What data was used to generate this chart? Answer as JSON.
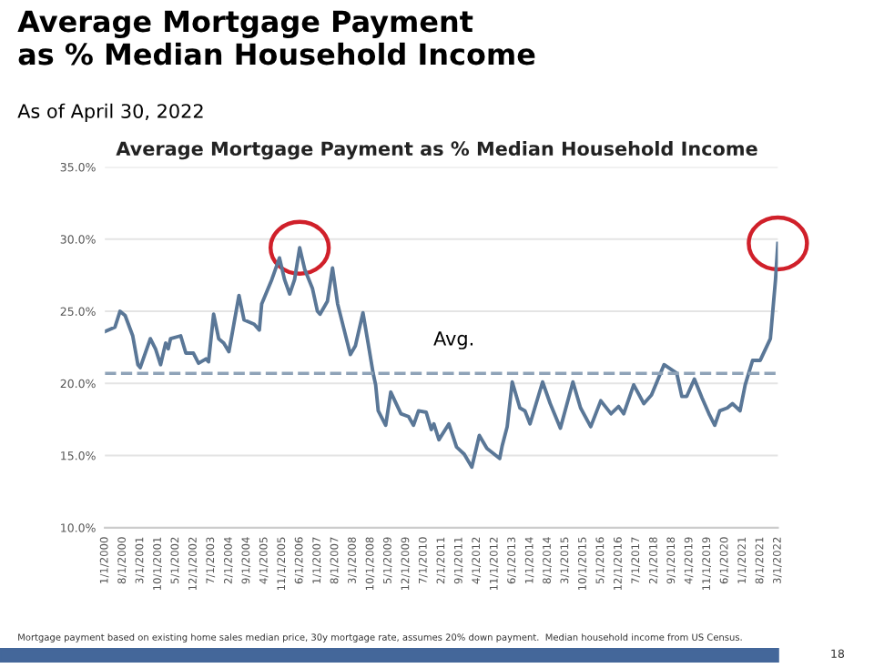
{
  "chart_data": {
    "type": "line",
    "title": "Average Mortgage Payment\nas % Median Household Income",
    "subtitle": "As of April 30, 2022",
    "annotations": [
      "Average Mortgage Payment as % Median Household Income",
      "Mortgage payment based on existing home sales median price, 30y mortgage rate, assumes 20% down payment.  Median household income from US Census.",
      "18"
    ],
    "x": [
      "2000-01",
      "2000-05",
      "2000-07",
      "2000-09",
      "2000-12",
      "2001-02",
      "2001-03",
      "2001-07",
      "2001-09",
      "2001-11",
      "2002-01",
      "2002-02",
      "2002-03",
      "2002-07",
      "2002-09",
      "2002-12",
      "2003-02",
      "2003-05",
      "2003-06",
      "2003-08",
      "2003-10",
      "2003-12",
      "2004-02",
      "2004-06",
      "2004-08",
      "2004-12",
      "2005-02",
      "2005-03",
      "2005-07",
      "2005-10",
      "2005-12",
      "2006-02",
      "2006-04",
      "2006-06",
      "2006-08",
      "2006-11",
      "2007-01",
      "2007-02",
      "2007-05",
      "2007-07",
      "2007-09",
      "2008-02",
      "2008-04",
      "2008-07",
      "2008-09",
      "2008-11",
      "2008-12",
      "2009-01",
      "2009-04",
      "2009-06",
      "2009-10",
      "2010-01",
      "2010-03",
      "2010-05",
      "2010-08",
      "2010-10",
      "2010-11",
      "2011-01",
      "2011-05",
      "2011-08",
      "2011-11",
      "2012-02",
      "2012-05",
      "2012-08",
      "2013-01",
      "2013-02",
      "2013-04",
      "2013-06",
      "2013-09",
      "2013-11",
      "2014-01",
      "2014-06",
      "2014-09",
      "2015-01",
      "2015-06",
      "2015-09",
      "2016-01",
      "2016-05",
      "2016-09",
      "2016-12",
      "2017-02",
      "2017-06",
      "2017-10",
      "2018-01",
      "2018-06",
      "2018-11",
      "2019-01",
      "2019-03",
      "2019-06",
      "2019-09",
      "2019-12",
      "2020-02",
      "2020-04",
      "2020-07",
      "2020-09",
      "2020-12",
      "2021-02",
      "2021-05",
      "2021-08",
      "2021-12",
      "2022-02",
      "2022-03"
    ],
    "series": [
      {
        "color": "#5a7797",
        "values": [
          23.6,
          23.9,
          25.0,
          24.7,
          23.3,
          21.3,
          21.1,
          23.1,
          22.4,
          21.3,
          22.8,
          22.4,
          23.1,
          23.3,
          22.1,
          22.1,
          21.4,
          21.7,
          21.5,
          24.8,
          23.1,
          22.8,
          22.2,
          26.1,
          24.4,
          24.1,
          23.7,
          25.5,
          27.2,
          28.7,
          27.2,
          26.2,
          27.2,
          29.4,
          27.9,
          26.6,
          25.0,
          24.8,
          25.7,
          28.0,
          25.5,
          22.0,
          22.6,
          24.9,
          22.8,
          20.7,
          19.9,
          18.1,
          17.1,
          19.4,
          17.9,
          17.7,
          17.1,
          18.1,
          18.0,
          16.8,
          17.2,
          16.1,
          17.2,
          15.6,
          15.1,
          14.2,
          16.4,
          15.5,
          14.8,
          15.7,
          17.0,
          20.1,
          18.3,
          18.1,
          17.2,
          20.1,
          18.6,
          16.9,
          20.1,
          18.3,
          17.0,
          18.8,
          17.9,
          18.4,
          17.9,
          19.9,
          18.6,
          19.2,
          21.3,
          20.7,
          19.1,
          19.1,
          20.3,
          19.0,
          17.8,
          17.1,
          18.1,
          18.3,
          18.6,
          18.1,
          19.9,
          21.6,
          21.6,
          23.1,
          27.2,
          29.7
        ]
      }
    ],
    "ref_lines": [
      {
        "axis": "y",
        "value": 20.7,
        "label": "Avg.",
        "color": "#8fa3b8",
        "line_style": "dashed"
      }
    ],
    "xlim": [
      "2000-01",
      "2022-03"
    ],
    "xticks": [
      {
        "value": "2000-01",
        "label": "1/1/2000"
      },
      {
        "value": "2000-08",
        "label": "8/1/2000"
      },
      {
        "value": "2001-03",
        "label": "3/1/2001"
      },
      {
        "value": "2001-10",
        "label": "10/1/2001"
      },
      {
        "value": "2002-05",
        "label": "5/1/2002"
      },
      {
        "value": "2002-12",
        "label": "12/1/2002"
      },
      {
        "value": "2003-07",
        "label": "7/1/2003"
      },
      {
        "value": "2004-02",
        "label": "2/1/2004"
      },
      {
        "value": "2004-09",
        "label": "9/1/2004"
      },
      {
        "value": "2005-04",
        "label": "4/1/2005"
      },
      {
        "value": "2005-11",
        "label": "11/1/2005"
      },
      {
        "value": "2006-06",
        "label": "6/1/2006"
      },
      {
        "value": "2007-01",
        "label": "1/1/2007"
      },
      {
        "value": "2007-08",
        "label": "8/1/2007"
      },
      {
        "value": "2008-03",
        "label": "3/1/2008"
      },
      {
        "value": "2008-10",
        "label": "10/1/2008"
      },
      {
        "value": "2009-05",
        "label": "5/1/2009"
      },
      {
        "value": "2009-12",
        "label": "12/1/2009"
      },
      {
        "value": "2010-07",
        "label": "7/1/2010"
      },
      {
        "value": "2011-02",
        "label": "2/1/2011"
      },
      {
        "value": "2011-09",
        "label": "9/1/2011"
      },
      {
        "value": "2012-04",
        "label": "4/1/2012"
      },
      {
        "value": "2012-11",
        "label": "11/1/2012"
      },
      {
        "value": "2013-06",
        "label": "6/1/2013"
      },
      {
        "value": "2014-01",
        "label": "1/1/2014"
      },
      {
        "value": "2014-08",
        "label": "8/1/2014"
      },
      {
        "value": "2015-03",
        "label": "3/1/2015"
      },
      {
        "value": "2015-10",
        "label": "10/1/2015"
      },
      {
        "value": "2016-05",
        "label": "5/1/2016"
      },
      {
        "value": "2016-12",
        "label": "12/1/2016"
      },
      {
        "value": "2017-07",
        "label": "7/1/2017"
      },
      {
        "value": "2018-02",
        "label": "2/1/2018"
      },
      {
        "value": "2018-09",
        "label": "9/1/2018"
      },
      {
        "value": "2019-04",
        "label": "4/1/2019"
      },
      {
        "value": "2019-11",
        "label": "11/1/2019"
      },
      {
        "value": "2020-06",
        "label": "6/1/2020"
      },
      {
        "value": "2021-01",
        "label": "1/1/2021"
      },
      {
        "value": "2021-08",
        "label": "8/1/2021"
      },
      {
        "value": "2022-03",
        "label": "3/1/2022"
      }
    ],
    "ylim": [
      10,
      35
    ],
    "yticks": [
      {
        "value": 10,
        "label": "10.0%"
      },
      {
        "value": 15,
        "label": "15.0%"
      },
      {
        "value": 20,
        "label": "20.0%"
      },
      {
        "value": 25,
        "label": "25.0%"
      },
      {
        "value": 30,
        "label": "30.0%"
      },
      {
        "value": 35,
        "label": "35.0%"
      }
    ],
    "grid": "y",
    "marker": "none",
    "line_style": "solid"
  }
}
